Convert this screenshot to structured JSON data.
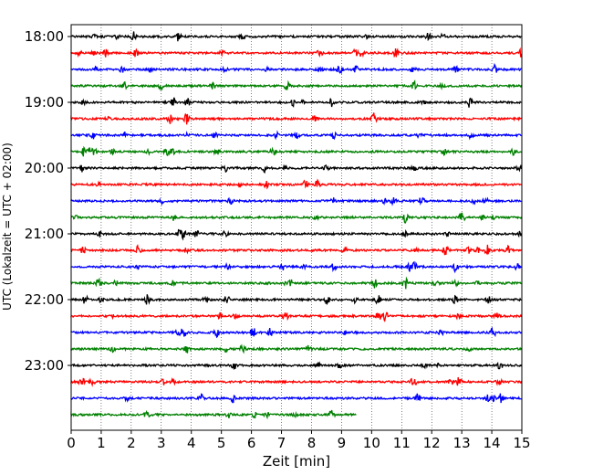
{
  "chart_data": {
    "type": "line",
    "title": "",
    "xlabel": "Zeit  [min]",
    "ylabel": "UTC (Lokalzeit = UTC + 02:00)",
    "xlim": [
      0,
      15
    ],
    "x_ticks": [
      0,
      1,
      2,
      3,
      4,
      5,
      6,
      7,
      8,
      9,
      10,
      11,
      12,
      13,
      14,
      15
    ],
    "x_tick_labels": [
      "0",
      "1",
      "2",
      "3",
      "4",
      "5",
      "6",
      "7",
      "8",
      "9",
      "10",
      "11",
      "12",
      "13",
      "14",
      "15"
    ],
    "y_time_range": [
      "18:00",
      "23:45"
    ],
    "y_ticks": [
      "18:00",
      "19:00",
      "20:00",
      "21:00",
      "22:00",
      "23:00"
    ],
    "vertical_grid": "dotted at every minute",
    "trace_interval_min": 15,
    "color_cycle": [
      "#000000",
      "#ff0000",
      "#0000ff",
      "#008000"
    ],
    "traces": [
      {
        "start": "18:00",
        "end_min": 15
      },
      {
        "start": "18:15",
        "end_min": 15
      },
      {
        "start": "18:30",
        "end_min": 15
      },
      {
        "start": "18:45",
        "end_min": 15
      },
      {
        "start": "19:00",
        "end_min": 15
      },
      {
        "start": "19:15",
        "end_min": 15
      },
      {
        "start": "19:30",
        "end_min": 15
      },
      {
        "start": "19:45",
        "end_min": 15
      },
      {
        "start": "20:00",
        "end_min": 15
      },
      {
        "start": "20:15",
        "end_min": 15
      },
      {
        "start": "20:30",
        "end_min": 15
      },
      {
        "start": "20:45",
        "end_min": 15
      },
      {
        "start": "21:00",
        "end_min": 15
      },
      {
        "start": "21:15",
        "end_min": 15
      },
      {
        "start": "21:30",
        "end_min": 15
      },
      {
        "start": "21:45",
        "end_min": 15
      },
      {
        "start": "22:00",
        "end_min": 15
      },
      {
        "start": "22:15",
        "end_min": 15
      },
      {
        "start": "22:30",
        "end_min": 15
      },
      {
        "start": "22:45",
        "end_min": 15
      },
      {
        "start": "23:00",
        "end_min": 15
      },
      {
        "start": "23:15",
        "end_min": 15
      },
      {
        "start": "23:30",
        "end_min": 15
      },
      {
        "start": "23:45",
        "end_min": 9.5
      }
    ]
  }
}
